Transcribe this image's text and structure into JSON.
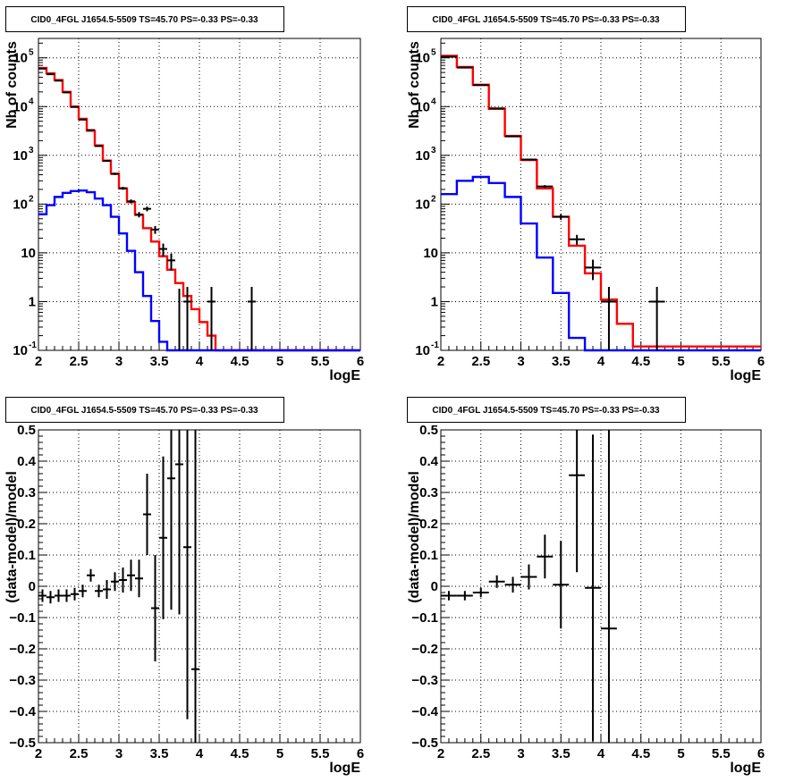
{
  "chart_data": [
    {
      "type": "histogram",
      "title": "CID0_4FGL J1654.5-5509 TS=45.70 PS=-0.33 PS=-0.33",
      "xlabel": "logE",
      "ylabel": "Nb of counts",
      "xlim": [
        2,
        6
      ],
      "ylim": [
        0.1,
        250000
      ],
      "yscale": "log",
      "grid": true,
      "xticks": [
        {
          "v": 2,
          "label": "2"
        },
        {
          "v": 2.5,
          "label": "2.5"
        },
        {
          "v": 3,
          "label": "3"
        },
        {
          "v": 3.5,
          "label": "3.5"
        },
        {
          "v": 4,
          "label": "4"
        },
        {
          "v": 4.5,
          "label": "4.5"
        },
        {
          "v": 5,
          "label": "5"
        },
        {
          "v": 5.5,
          "label": "5.5"
        },
        {
          "v": 6,
          "label": "6"
        }
      ],
      "yticks": [
        {
          "v": 0.1,
          "label": "10",
          "sup": "-1"
        },
        {
          "v": 1,
          "label": "1"
        },
        {
          "v": 10,
          "label": "10"
        },
        {
          "v": 100,
          "label": "10",
          "sup": "2"
        },
        {
          "v": 1000,
          "label": "10",
          "sup": "3"
        },
        {
          "v": 10000,
          "label": "10",
          "sup": "4"
        },
        {
          "v": 100000,
          "label": "10",
          "sup": "5"
        }
      ],
      "bin_edges_start": 2,
      "bin_width": 0.1,
      "series": [
        {
          "color": "#ff0000",
          "style": "step",
          "values": [
            62000,
            48000,
            35000,
            20000,
            10000,
            5600,
            3200,
            1600,
            780,
            420,
            210,
            110,
            60,
            32,
            17,
            8.5,
            4.5,
            2.4,
            1.3,
            0.7,
            0.38,
            0.2,
            0.1
          ]
        },
        {
          "color": "#0000ff",
          "style": "step",
          "values": [
            62,
            95,
            140,
            170,
            185,
            190,
            175,
            130,
            95,
            55,
            25,
            11,
            4,
            1.3,
            0.4,
            0.15,
            0.1,
            0.1,
            0.1,
            0.1,
            0.1,
            0.1,
            0.1,
            0.1,
            0.1,
            0.1,
            0.1,
            0.1,
            0.1,
            0.1,
            0.1,
            0.1,
            0.1,
            0.1,
            0.1,
            0.1,
            0.1,
            0.1,
            0.1,
            0.1
          ]
        }
      ],
      "data_points": {
        "color": "#000000",
        "xerr": 0.05,
        "points": [
          [
            2.05,
            60000
          ],
          [
            2.15,
            46000
          ],
          [
            2.25,
            34000
          ],
          [
            2.35,
            19500
          ],
          [
            2.45,
            9800
          ],
          [
            2.55,
            5400
          ],
          [
            2.65,
            3300
          ],
          [
            2.75,
            1550
          ],
          [
            2.85,
            770
          ],
          [
            2.95,
            415
          ],
          [
            3.05,
            211
          ],
          [
            3.15,
            114
          ],
          [
            3.25,
            61
          ],
          [
            3.35,
            80
          ],
          [
            3.45,
            30
          ],
          [
            3.55,
            12
          ],
          [
            3.65,
            7
          ],
          [
            3.75,
            0
          ],
          [
            3.85,
            1
          ],
          [
            4.15,
            1
          ],
          [
            4.65,
            1
          ]
        ]
      }
    },
    {
      "type": "histogram",
      "title": "CID0_4FGL J1654.5-5509 TS=45.70 PS=-0.33 PS=-0.33",
      "xlabel": "logE",
      "ylabel": "Nb of counts",
      "xlim": [
        2,
        6
      ],
      "ylim": [
        0.1,
        250000
      ],
      "yscale": "log",
      "grid": true,
      "xticks": [
        {
          "v": 2,
          "label": "2"
        },
        {
          "v": 2.5,
          "label": "2.5"
        },
        {
          "v": 3,
          "label": "3"
        },
        {
          "v": 3.5,
          "label": "3.5"
        },
        {
          "v": 4,
          "label": "4"
        },
        {
          "v": 4.5,
          "label": "4.5"
        },
        {
          "v": 5,
          "label": "5"
        },
        {
          "v": 5.5,
          "label": "5.5"
        },
        {
          "v": 6,
          "label": "6"
        }
      ],
      "yticks": [
        {
          "v": 0.1,
          "label": "10",
          "sup": "-1"
        },
        {
          "v": 1,
          "label": "1"
        },
        {
          "v": 10,
          "label": "10"
        },
        {
          "v": 100,
          "label": "10",
          "sup": "2"
        },
        {
          "v": 1000,
          "label": "10",
          "sup": "3"
        },
        {
          "v": 10000,
          "label": "10",
          "sup": "4"
        },
        {
          "v": 100000,
          "label": "10",
          "sup": "5"
        }
      ],
      "bin_edges_start": 2,
      "bin_width": 0.2,
      "series": [
        {
          "color": "#ff0000",
          "style": "step",
          "values": [
            110000,
            65000,
            28000,
            9000,
            2500,
            800,
            210,
            55,
            14,
            3.8,
            1.1,
            0.35,
            0.12
          ]
        },
        {
          "color": "#0000ff",
          "style": "step",
          "values": [
            160,
            300,
            360,
            270,
            140,
            40,
            8,
            1.5,
            0.18,
            0.1,
            0.1,
            0.1,
            0.1,
            0.1,
            0.1,
            0.1,
            0.1,
            0.1,
            0.1,
            0.1
          ]
        }
      ],
      "data_points": {
        "color": "#000000",
        "xerr": 0.1,
        "points": [
          [
            2.1,
            105000
          ],
          [
            2.3,
            63000
          ],
          [
            2.5,
            27500
          ],
          [
            2.7,
            9200
          ],
          [
            2.9,
            2450
          ],
          [
            3.1,
            820
          ],
          [
            3.3,
            230
          ],
          [
            3.5,
            55
          ],
          [
            3.7,
            19
          ],
          [
            3.9,
            5
          ],
          [
            4.1,
            1
          ],
          [
            4.7,
            1
          ]
        ]
      }
    },
    {
      "type": "scatter",
      "title": "CID0_4FGL J1654.5-5509 TS=45.70 PS=-0.33 PS=-0.33",
      "xlabel": "logE",
      "ylabel": "(data-model)/model",
      "xlim": [
        2,
        6
      ],
      "ylim": [
        -0.5,
        0.5
      ],
      "yscale": "linear",
      "grid": true,
      "xticks": [
        {
          "v": 2,
          "label": "2"
        },
        {
          "v": 2.5,
          "label": "2.5"
        },
        {
          "v": 3,
          "label": "3"
        },
        {
          "v": 3.5,
          "label": "3.5"
        },
        {
          "v": 4,
          "label": "4"
        },
        {
          "v": 4.5,
          "label": "4.5"
        },
        {
          "v": 5,
          "label": "5"
        },
        {
          "v": 5.5,
          "label": "5.5"
        },
        {
          "v": 6,
          "label": "6"
        }
      ],
      "yticks": [
        {
          "v": -0.5,
          "label": "−0.5"
        },
        {
          "v": -0.4,
          "label": "−0.4"
        },
        {
          "v": -0.3,
          "label": "−0.3"
        },
        {
          "v": -0.2,
          "label": "−0.2"
        },
        {
          "v": -0.1,
          "label": "−0.1"
        },
        {
          "v": 0,
          "label": "0"
        },
        {
          "v": 0.1,
          "label": "0.1"
        },
        {
          "v": 0.2,
          "label": "0.2"
        },
        {
          "v": 0.3,
          "label": "0.3"
        },
        {
          "v": 0.4,
          "label": "0.4"
        },
        {
          "v": 0.5,
          "label": "0.5"
        }
      ],
      "data_points": {
        "color": "#000000",
        "xerr": 0.05,
        "points": [
          [
            2.05,
            -0.03,
            0.02
          ],
          [
            2.15,
            -0.035,
            0.02
          ],
          [
            2.25,
            -0.03,
            0.02
          ],
          [
            2.35,
            -0.03,
            0.02
          ],
          [
            2.45,
            -0.025,
            0.02
          ],
          [
            2.55,
            -0.015,
            0.02
          ],
          [
            2.65,
            0.035,
            0.02
          ],
          [
            2.75,
            -0.015,
            0.02
          ],
          [
            2.85,
            -0.01,
            0.03
          ],
          [
            2.95,
            0.015,
            0.03
          ],
          [
            3.05,
            0.02,
            0.04
          ],
          [
            3.15,
            0.035,
            0.05
          ],
          [
            3.25,
            0.025,
            0.06
          ],
          [
            3.35,
            0.23,
            0.13
          ],
          [
            3.45,
            -0.07,
            0.17
          ],
          [
            3.55,
            0.155,
            0.26
          ],
          [
            3.65,
            0.345,
            0.42
          ],
          [
            3.75,
            0.39,
            0.48
          ],
          [
            3.85,
            0.125,
            0.55
          ],
          [
            3.95,
            -0.265,
            0.8
          ]
        ]
      }
    },
    {
      "type": "scatter",
      "title": "CID0_4FGL J1654.5-5509 TS=45.70 PS=-0.33 PS=-0.33",
      "xlabel": "logE",
      "ylabel": "(data-model)/model",
      "xlim": [
        2,
        6
      ],
      "ylim": [
        -0.5,
        0.5
      ],
      "yscale": "linear",
      "grid": true,
      "xticks": [
        {
          "v": 2,
          "label": "2"
        },
        {
          "v": 2.5,
          "label": "2.5"
        },
        {
          "v": 3,
          "label": "3"
        },
        {
          "v": 3.5,
          "label": "3.5"
        },
        {
          "v": 4,
          "label": "4"
        },
        {
          "v": 4.5,
          "label": "4.5"
        },
        {
          "v": 5,
          "label": "5"
        },
        {
          "v": 5.5,
          "label": "5.5"
        },
        {
          "v": 6,
          "label": "6"
        }
      ],
      "yticks": [
        {
          "v": -0.5,
          "label": "−0.5"
        },
        {
          "v": -0.4,
          "label": "−0.4"
        },
        {
          "v": -0.3,
          "label": "−0.3"
        },
        {
          "v": -0.2,
          "label": "−0.2"
        },
        {
          "v": -0.1,
          "label": "−0.1"
        },
        {
          "v": 0,
          "label": "0"
        },
        {
          "v": 0.1,
          "label": "0.1"
        },
        {
          "v": 0.2,
          "label": "0.2"
        },
        {
          "v": 0.3,
          "label": "0.3"
        },
        {
          "v": 0.4,
          "label": "0.4"
        },
        {
          "v": 0.5,
          "label": "0.5"
        }
      ],
      "data_points": {
        "color": "#000000",
        "xerr": 0.1,
        "points": [
          [
            2.1,
            -0.03,
            0.015
          ],
          [
            2.3,
            -0.03,
            0.015
          ],
          [
            2.5,
            -0.02,
            0.015
          ],
          [
            2.7,
            0.015,
            0.02
          ],
          [
            2.9,
            0.005,
            0.025
          ],
          [
            3.1,
            0.03,
            0.04
          ],
          [
            3.3,
            0.095,
            0.07
          ],
          [
            3.5,
            0.005,
            0.14
          ],
          [
            3.7,
            0.355,
            0.31
          ],
          [
            3.9,
            -0.005,
            0.49
          ],
          [
            4.1,
            -0.135,
            1.0
          ]
        ]
      }
    }
  ]
}
